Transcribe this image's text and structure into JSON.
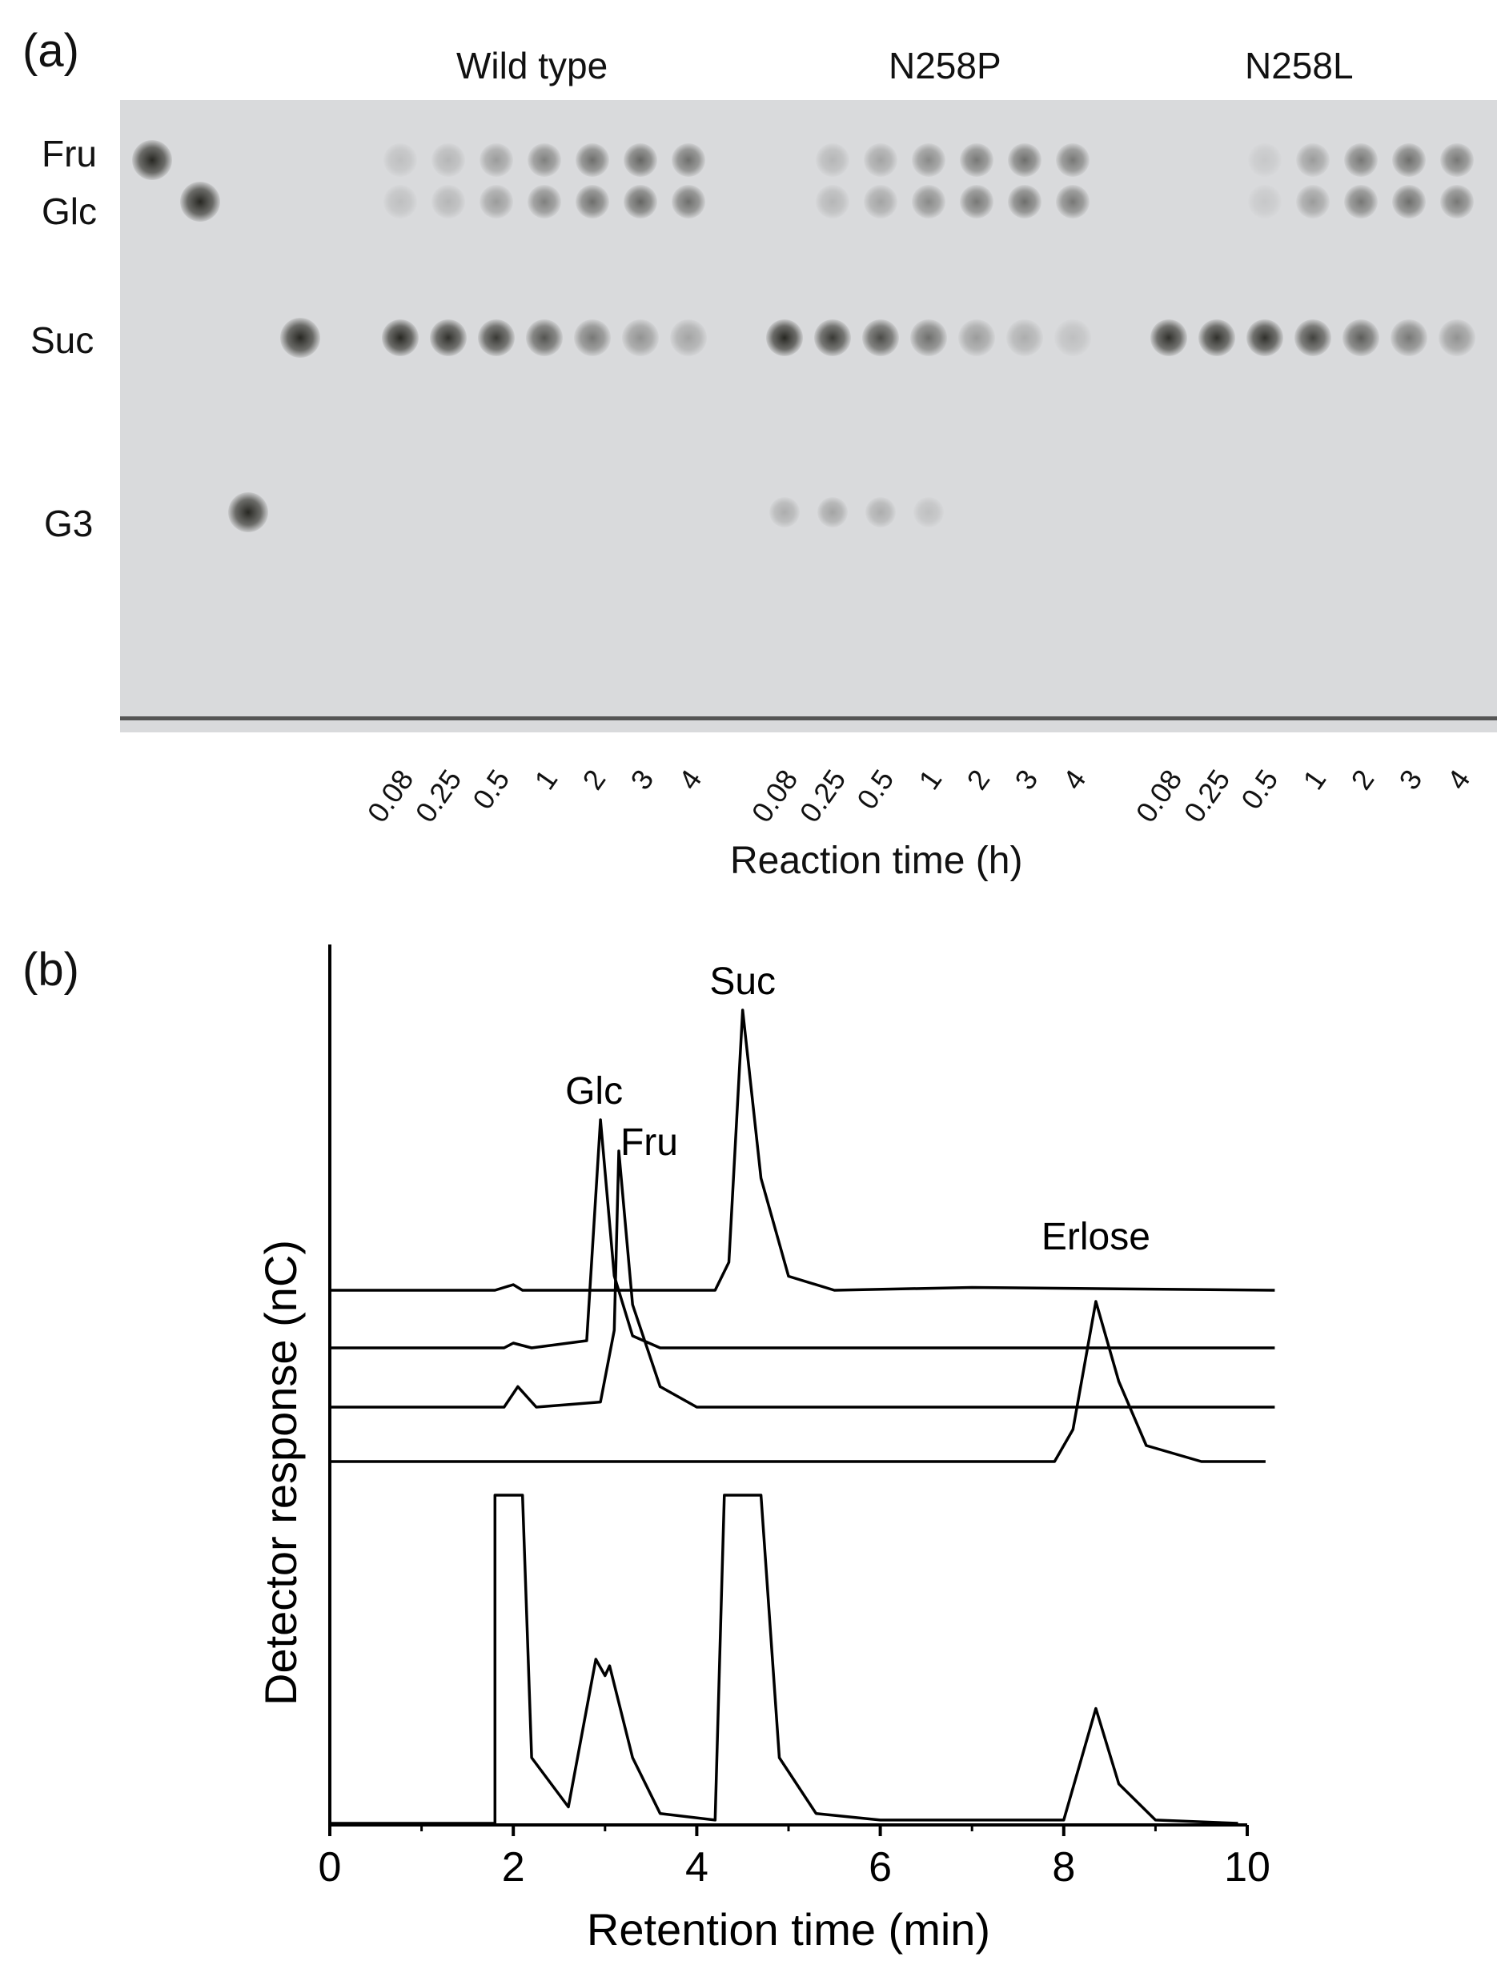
{
  "panels": {
    "a": {
      "letter": "(a)",
      "groups": [
        "Wild type",
        "N258P",
        "N258L"
      ],
      "standards": [
        "Fru",
        "Glc",
        "Suc",
        "G3"
      ],
      "reaction_times": [
        "0.08",
        "0.25",
        "0.5",
        "1",
        "2",
        "3",
        "4"
      ],
      "xlabel": "Reaction time (h)"
    },
    "b": {
      "letter": "(b)",
      "peak_labels": [
        "Suc",
        "Glc",
        "Fru",
        "Erlose"
      ]
    }
  },
  "chart_data": [
    {
      "type": "table",
      "title": "",
      "description_of_content": "",
      "groups": [
        "Wild type",
        "N258P",
        "N258L"
      ],
      "standards": [
        "Fru",
        "Glc",
        "Suc",
        "G3"
      ],
      "reaction_times_h": [
        0.08,
        0.25,
        0.5,
        1,
        2,
        3,
        4
      ],
      "xlabel": "Reaction time (h)",
      "spot_intensity": {
        "Wild type": {
          "Suc": [
            1.0,
            0.95,
            0.9,
            0.75,
            0.55,
            0.4,
            0.3
          ],
          "Glc": [
            0.15,
            0.2,
            0.35,
            0.5,
            0.6,
            0.65,
            0.6
          ],
          "Fru": [
            0.15,
            0.2,
            0.35,
            0.5,
            0.6,
            0.65,
            0.6
          ],
          "G3": [
            0,
            0,
            0,
            0,
            0,
            0,
            0
          ]
        },
        "N258P": {
          "Suc": [
            1.0,
            0.9,
            0.8,
            0.6,
            0.35,
            0.25,
            0.15
          ],
          "Glc": [
            0.0,
            0.2,
            0.3,
            0.45,
            0.55,
            0.6,
            0.55
          ],
          "Fru": [
            0.0,
            0.2,
            0.3,
            0.45,
            0.55,
            0.6,
            0.55
          ],
          "G3": [
            0.25,
            0.3,
            0.25,
            0.15,
            0,
            0,
            0
          ]
        },
        "N258L": {
          "Suc": [
            0.95,
            0.95,
            0.95,
            0.85,
            0.7,
            0.55,
            0.4
          ],
          "Glc": [
            0.0,
            0.0,
            0.1,
            0.35,
            0.55,
            0.6,
            0.55
          ],
          "Fru": [
            0.0,
            0.0,
            0.1,
            0.35,
            0.55,
            0.6,
            0.55
          ],
          "G3": [
            0,
            0,
            0,
            0,
            0,
            0,
            0
          ]
        }
      },
      "standard_lanes": {
        "Fru": 1.0,
        "Glc": 1.0,
        "G3": 1.0,
        "Suc": 1.0
      }
    },
    {
      "type": "line",
      "title": "",
      "xlabel": "Retention time (min)",
      "ylabel": "Detector response (nC)",
      "xlim": [
        0,
        10
      ],
      "xticks": [
        0,
        2,
        4,
        6,
        8,
        10
      ],
      "grid": false,
      "series": [
        {
          "peaks": [
            {
              "label": "Suc",
              "x": 4.5,
              "height": 1.0
            }
          ],
          "trace": [
            [
              0,
              0
            ],
            [
              1.8,
              0
            ],
            [
              2.0,
              0.02
            ],
            [
              2.1,
              0
            ],
            [
              4.2,
              0
            ],
            [
              4.35,
              0.1
            ],
            [
              4.5,
              1.0
            ],
            [
              4.7,
              0.4
            ],
            [
              5.0,
              0.05
            ],
            [
              5.5,
              0
            ],
            [
              7,
              0.01
            ],
            [
              10.3,
              0
            ]
          ]
        },
        {
          "peaks": [
            {
              "label": "Glc",
              "x": 2.95,
              "height": 0.95
            }
          ],
          "trace": [
            [
              0,
              0
            ],
            [
              1.9,
              0
            ],
            [
              2.0,
              0.02
            ],
            [
              2.2,
              0
            ],
            [
              2.8,
              0.03
            ],
            [
              2.95,
              0.95
            ],
            [
              3.1,
              0.3
            ],
            [
              3.3,
              0.05
            ],
            [
              3.6,
              0
            ],
            [
              10.3,
              0
            ]
          ]
        },
        {
          "peaks": [
            {
              "label": "Fru",
              "x": 3.15,
              "height": 1.0
            }
          ],
          "trace": [
            [
              0,
              0
            ],
            [
              1.9,
              0
            ],
            [
              2.05,
              0.08
            ],
            [
              2.25,
              0
            ],
            [
              2.95,
              0.02
            ],
            [
              3.1,
              0.3
            ],
            [
              3.15,
              1.0
            ],
            [
              3.3,
              0.4
            ],
            [
              3.6,
              0.08
            ],
            [
              4.0,
              0
            ],
            [
              10.3,
              0
            ]
          ]
        },
        {
          "peaks": [
            {
              "label": "Erlose",
              "x": 8.35,
              "height": 1.0
            }
          ],
          "trace": [
            [
              0,
              0
            ],
            [
              7.9,
              0
            ],
            [
              8.1,
              0.2
            ],
            [
              8.35,
              1.0
            ],
            [
              8.6,
              0.5
            ],
            [
              8.9,
              0.1
            ],
            [
              9.5,
              0
            ],
            [
              10.2,
              0
            ]
          ]
        },
        {
          "peaks": [],
          "trace": [
            [
              0,
              0
            ],
            [
              1.8,
              0
            ],
            [
              1.8,
              1.0
            ],
            [
              2.1,
              1.0
            ],
            [
              2.2,
              0.2
            ],
            [
              2.6,
              0.05
            ],
            [
              2.9,
              0.5
            ],
            [
              3.0,
              0.45
            ],
            [
              3.05,
              0.48
            ],
            [
              3.3,
              0.2
            ],
            [
              3.6,
              0.03
            ],
            [
              4.2,
              0.01
            ],
            [
              4.3,
              1.0
            ],
            [
              4.7,
              1.0
            ],
            [
              4.9,
              0.2
            ],
            [
              5.3,
              0.03
            ],
            [
              6,
              0.01
            ],
            [
              8.0,
              0.01
            ],
            [
              8.35,
              0.35
            ],
            [
              8.6,
              0.12
            ],
            [
              9.0,
              0.01
            ],
            [
              9.9,
              0
            ]
          ]
        }
      ]
    }
  ]
}
